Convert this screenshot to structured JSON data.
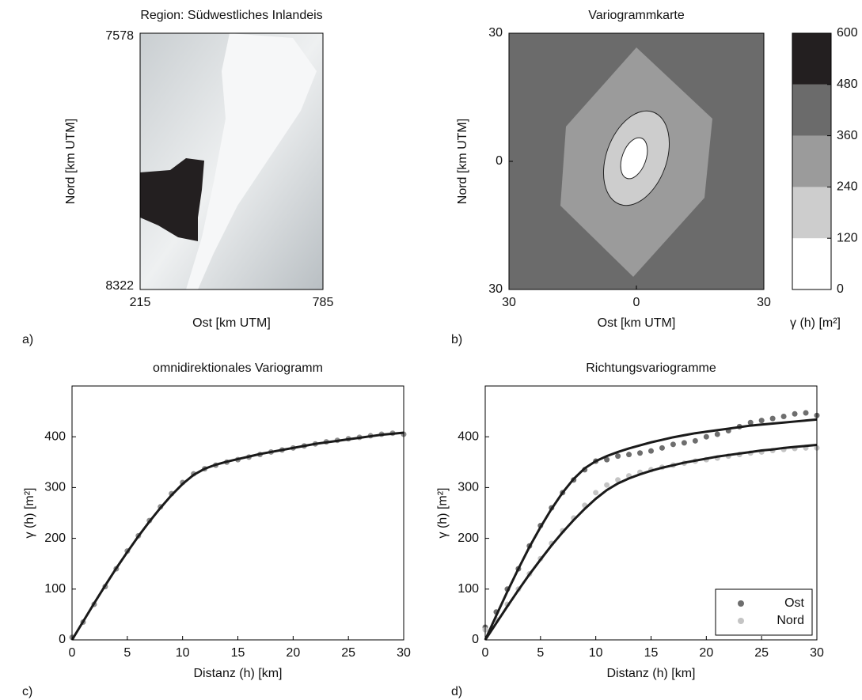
{
  "chart_data": [
    {
      "type": "image",
      "title": "Region: Südwestliches Inlandeis",
      "panel": "a)",
      "xlabel": "Ost [km UTM]",
      "ylabel": "Nord [km UTM]",
      "xlim": [
        215,
        785
      ],
      "xticks": [
        215,
        785
      ],
      "ylim": [
        8322,
        7578
      ],
      "yticks": [
        7578,
        8322
      ]
    },
    {
      "type": "contour",
      "title": "Variogrammkarte",
      "panel": "b)",
      "xlabel": "Ost [km UTM]",
      "ylabel": "Nord [km UTM]",
      "xlim": [
        -30,
        30
      ],
      "xticks": [
        {
          "value": -30,
          "label": "30"
        },
        0,
        30
      ],
      "ylim": [
        -30,
        30
      ],
      "yticks": [
        {
          "value": -30,
          "label": "30"
        },
        0,
        30
      ],
      "colorbar": {
        "label": "γ (h) [m²]",
        "clim": [
          0,
          600
        ],
        "ticks": [
          0,
          120,
          240,
          360,
          480,
          600
        ],
        "colors": [
          "#ffffff",
          "#cdcdcd",
          "#9b9b9b",
          "#6b6b6b",
          "#231f20"
        ]
      }
    },
    {
      "type": "scatter",
      "title": "omnidirektionales Variogramm",
      "panel": "c)",
      "xlabel": "Distanz (h) [km]",
      "ylabel": "γ (h) [m²]",
      "xlim": [
        0,
        30
      ],
      "xticks": [
        0,
        5,
        10,
        15,
        20,
        25,
        30
      ],
      "ylim": [
        0,
        500
      ],
      "yticks": [
        0,
        100,
        200,
        300,
        400
      ],
      "x": [
        0,
        1,
        2,
        3,
        4,
        5,
        6,
        7,
        8,
        9,
        10,
        11,
        12,
        13,
        14,
        15,
        16,
        17,
        18,
        19,
        20,
        21,
        22,
        23,
        24,
        25,
        26,
        27,
        28,
        29,
        30
      ],
      "series": [
        {
          "color": "#8f8f8f",
          "values": [
            5,
            35,
            70,
            105,
            140,
            175,
            205,
            235,
            262,
            288,
            310,
            327,
            337,
            344,
            350,
            355,
            360,
            365,
            370,
            374,
            378,
            382,
            386,
            390,
            393,
            396,
            399,
            402,
            405,
            407,
            405
          ]
        }
      ],
      "fits": [
        {
          "color": "#1a1a1a",
          "values": [
            0,
            36,
            72,
            107,
            141,
            173,
            204,
            233,
            260,
            285,
            307,
            325,
            337,
            345,
            351,
            356,
            361,
            366,
            370,
            374,
            378,
            382,
            386,
            389,
            392,
            395,
            398,
            401,
            404,
            406,
            408
          ]
        }
      ]
    },
    {
      "type": "scatter",
      "title": "Richtungsvariogramme",
      "panel": "d)",
      "xlabel": "Distanz (h) [km]",
      "ylabel": "γ (h) [m²]",
      "xlim": [
        0,
        30
      ],
      "xticks": [
        0,
        5,
        10,
        15,
        20,
        25,
        30
      ],
      "ylim": [
        0,
        500
      ],
      "yticks": [
        0,
        100,
        200,
        300,
        400
      ],
      "legend": "lower right",
      "x": [
        0,
        1,
        2,
        3,
        4,
        5,
        6,
        7,
        8,
        9,
        10,
        11,
        12,
        13,
        14,
        15,
        16,
        17,
        18,
        19,
        20,
        21,
        22,
        23,
        24,
        25,
        26,
        27,
        28,
        29,
        30
      ],
      "series": [
        {
          "name": "Ost",
          "color": "#6e6e6e",
          "values": [
            25,
            55,
            100,
            140,
            185,
            225,
            260,
            290,
            315,
            335,
            352,
            355,
            362,
            365,
            368,
            372,
            378,
            385,
            388,
            392,
            400,
            405,
            412,
            420,
            428,
            432,
            436,
            440,
            445,
            447,
            442
          ]
        },
        {
          "name": "Nord",
          "color": "#c4c4c4",
          "values": [
            20,
            40,
            70,
            100,
            130,
            160,
            190,
            215,
            240,
            265,
            290,
            305,
            315,
            323,
            330,
            335,
            340,
            344,
            348,
            352,
            355,
            358,
            362,
            365,
            368,
            370,
            373,
            375,
            377,
            378,
            378
          ]
        }
      ],
      "fits": [
        {
          "color": "#1a1a1a",
          "values": [
            0,
            48,
            95,
            140,
            183,
            222,
            258,
            290,
            317,
            338,
            352,
            362,
            370,
            377,
            383,
            389,
            394,
            399,
            403,
            407,
            410,
            413,
            416,
            419,
            422,
            424,
            426,
            428,
            430,
            432,
            434
          ]
        },
        {
          "color": "#1a1a1a",
          "values": [
            0,
            33,
            66,
            98,
            129,
            158,
            186,
            212,
            236,
            258,
            278,
            295,
            308,
            318,
            326,
            333,
            339,
            344,
            349,
            353,
            357,
            361,
            364,
            367,
            370,
            373,
            375,
            378,
            380,
            382,
            384
          ]
        }
      ]
    }
  ]
}
